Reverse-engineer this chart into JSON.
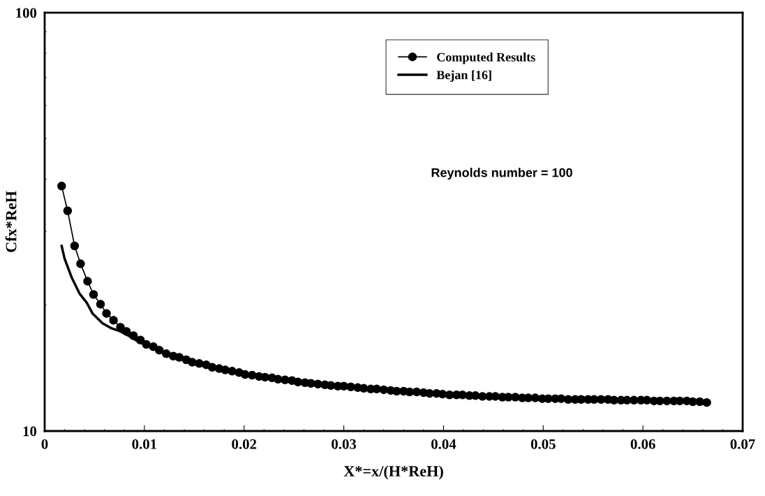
{
  "chart_data": {
    "type": "line",
    "xlabel": "X*=x/(H*ReH)",
    "ylabel": "Cfx*ReH",
    "log": "y",
    "xlim": [
      0,
      0.07
    ],
    "ylim": [
      10,
      100
    ],
    "xticks": [
      0,
      0.01,
      0.02,
      0.03,
      0.04,
      0.05,
      0.06,
      0.07
    ],
    "yticks": [
      10,
      100
    ],
    "grid": false,
    "legend": "top",
    "annotations": [
      "Reynolds number = 100"
    ],
    "series": [
      {
        "name": "Computed Results",
        "color": "#000000",
        "marker": "circle",
        "line_style": "solid",
        "x": [
          0.0017,
          0.0023,
          0.003,
          0.0036,
          0.0043,
          0.0049,
          0.0056,
          0.0062,
          0.0069,
          0.0076,
          0.0082,
          0.0089,
          0.0096,
          0.0102,
          0.0109,
          0.0115,
          0.0122,
          0.0129,
          0.0135,
          0.0142,
          0.0148,
          0.0155,
          0.0162,
          0.0168,
          0.0175,
          0.0181,
          0.0188,
          0.0195,
          0.0201,
          0.0208,
          0.0215,
          0.0221,
          0.0228,
          0.0234,
          0.0241,
          0.0248,
          0.0254,
          0.0261,
          0.0267,
          0.0274,
          0.0281,
          0.0287,
          0.0294,
          0.03,
          0.0307,
          0.0314,
          0.032,
          0.0327,
          0.0333,
          0.034,
          0.0347,
          0.0353,
          0.036,
          0.0366,
          0.0373,
          0.038,
          0.0386,
          0.0393,
          0.0399,
          0.0406,
          0.0413,
          0.0419,
          0.0426,
          0.0432,
          0.0439,
          0.0446,
          0.0452,
          0.0459,
          0.0465,
          0.0472,
          0.0479,
          0.0485,
          0.0492,
          0.0499,
          0.0505,
          0.0512,
          0.0518,
          0.0525,
          0.0532,
          0.0538,
          0.0545,
          0.0551,
          0.0558,
          0.0565,
          0.0571,
          0.0578,
          0.0584,
          0.0591,
          0.0598,
          0.0604,
          0.0611,
          0.0617,
          0.0624,
          0.0631,
          0.0637,
          0.0644,
          0.065,
          0.0657,
          0.0664
        ],
        "values": [
          38.5,
          33.6,
          27.7,
          25.1,
          22.8,
          21.2,
          20.1,
          19.1,
          18.4,
          17.7,
          17.3,
          16.9,
          16.5,
          16.1,
          15.9,
          15.6,
          15.3,
          15.1,
          15.0,
          14.8,
          14.6,
          14.5,
          14.4,
          14.2,
          14.1,
          14.0,
          13.9,
          13.8,
          13.65,
          13.6,
          13.5,
          13.45,
          13.4,
          13.3,
          13.25,
          13.2,
          13.1,
          13.05,
          13.0,
          12.95,
          12.9,
          12.85,
          12.8,
          12.8,
          12.75,
          12.7,
          12.65,
          12.6,
          12.6,
          12.55,
          12.5,
          12.45,
          12.45,
          12.4,
          12.4,
          12.35,
          12.3,
          12.3,
          12.25,
          12.2,
          12.2,
          12.2,
          12.15,
          12.15,
          12.1,
          12.1,
          12.1,
          12.05,
          12.05,
          12.05,
          12.0,
          12.0,
          12.0,
          11.95,
          11.95,
          11.95,
          11.95,
          11.9,
          11.9,
          11.9,
          11.9,
          11.9,
          11.9,
          11.9,
          11.85,
          11.85,
          11.85,
          11.85,
          11.85,
          11.85,
          11.8,
          11.8,
          11.8,
          11.8,
          11.8,
          11.8,
          11.75,
          11.75,
          11.7
        ]
      },
      {
        "name": "Bejan [16]",
        "color": "#000000",
        "marker": "none",
        "line_style": "solid",
        "x": [
          0.0017,
          0.002,
          0.0027,
          0.0035,
          0.0042,
          0.0048,
          0.0058,
          0.0067,
          0.0076,
          0.0086,
          0.0095,
          0.0109
        ],
        "values": [
          27.7,
          25.8,
          23.3,
          21.3,
          20.3,
          19.1,
          18.1,
          17.6,
          17.3,
          16.8,
          16.3,
          15.8
        ]
      }
    ]
  }
}
